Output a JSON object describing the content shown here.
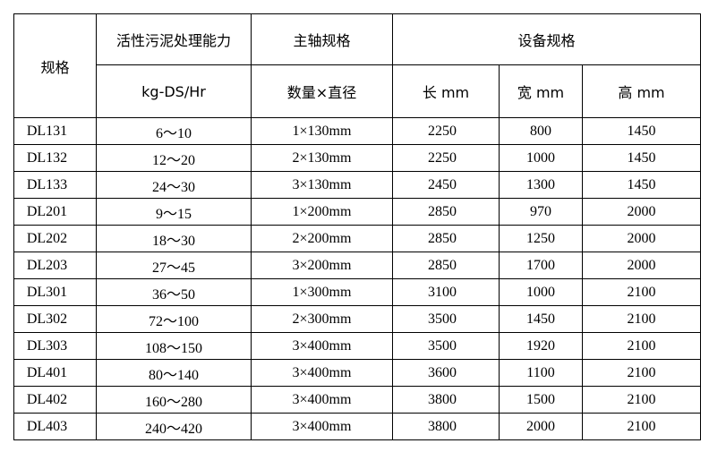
{
  "header": {
    "spec": "规格",
    "capacity": "活性污泥处理能力",
    "capacity_unit": "kg-DS/Hr",
    "shaft": "主轴规格",
    "shaft_sub": "数量×直径",
    "equipment": "设备规格",
    "length": "长 mm",
    "width": "宽 mm",
    "height": "高 mm"
  },
  "rows": [
    {
      "model": "DL131",
      "capacity": "6～10",
      "shaft": "1×130mm",
      "length": "2250",
      "width": "800",
      "height": "1450"
    },
    {
      "model": "DL132",
      "capacity": "12～20",
      "shaft": "2×130mm",
      "length": "2250",
      "width": "1000",
      "height": "1450"
    },
    {
      "model": "DL133",
      "capacity": "24～30",
      "shaft": "3×130mm",
      "length": "2450",
      "width": "1300",
      "height": "1450"
    },
    {
      "model": "DL201",
      "capacity": "9～15",
      "shaft": "1×200mm",
      "length": "2850",
      "width": "970",
      "height": "2000"
    },
    {
      "model": "DL202",
      "capacity": "18～30",
      "shaft": "2×200mm",
      "length": "2850",
      "width": "1250",
      "height": "2000"
    },
    {
      "model": "DL203",
      "capacity": "27～45",
      "shaft": "3×200mm",
      "length": "2850",
      "width": "1700",
      "height": "2000"
    },
    {
      "model": "DL301",
      "capacity": "36～50",
      "shaft": "1×300mm",
      "length": "3100",
      "width": "1000",
      "height": "2100"
    },
    {
      "model": "DL302",
      "capacity": "72～100",
      "shaft": "2×300mm",
      "length": "3500",
      "width": "1450",
      "height": "2100"
    },
    {
      "model": "DL303",
      "capacity": "108～150",
      "shaft": "3×400mm",
      "length": "3500",
      "width": "1920",
      "height": "2100"
    },
    {
      "model": "DL401",
      "capacity": "80～140",
      "shaft": "3×400mm",
      "length": "3600",
      "width": "1100",
      "height": "2100"
    },
    {
      "model": "DL402",
      "capacity": "160～280",
      "shaft": "3×400mm",
      "length": "3800",
      "width": "1500",
      "height": "2100"
    },
    {
      "model": "DL403",
      "capacity": "240～420",
      "shaft": "3×400mm",
      "length": "3800",
      "width": "2000",
      "height": "2100"
    }
  ]
}
